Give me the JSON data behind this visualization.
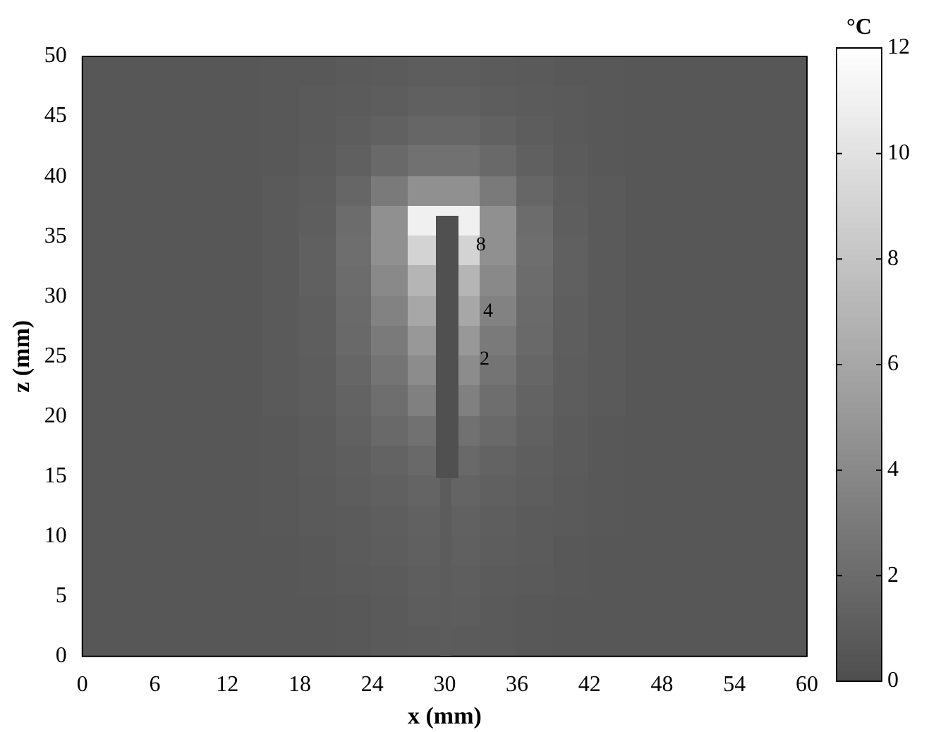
{
  "chart_data": {
    "type": "heatmap",
    "xlabel": "x (mm)",
    "ylabel": "z (mm)",
    "clabel": "°C",
    "x": [
      1.5,
      4.5,
      7.5,
      10.5,
      13.5,
      16.5,
      19.5,
      22.5,
      25.5,
      28.5,
      31.5,
      34.5,
      37.5,
      40.5,
      43.5,
      46.5,
      49.5,
      52.5,
      55.5,
      58.5
    ],
    "y": [
      48.75,
      46.25,
      43.75,
      41.25,
      38.75,
      36.25,
      33.75,
      31.25,
      28.75,
      26.25,
      23.75,
      21.25,
      18.75,
      16.25,
      13.75,
      11.25,
      8.75,
      6.25,
      3.75,
      1.25
    ],
    "cells": [
      [
        0.6,
        0.6,
        0.6,
        0.6,
        0.6,
        0.7,
        0.7,
        0.8,
        0.9,
        1.0,
        1.0,
        0.9,
        0.8,
        0.7,
        0.7,
        0.6,
        0.6,
        0.6,
        0.6,
        0.6
      ],
      [
        0.6,
        0.6,
        0.6,
        0.6,
        0.6,
        0.7,
        0.8,
        0.9,
        1.0,
        1.2,
        1.2,
        1.0,
        0.9,
        0.8,
        0.7,
        0.6,
        0.6,
        0.6,
        0.6,
        0.6
      ],
      [
        0.6,
        0.6,
        0.6,
        0.6,
        0.6,
        0.7,
        0.8,
        1.0,
        1.3,
        1.6,
        1.6,
        1.3,
        1.0,
        0.8,
        0.7,
        0.6,
        0.6,
        0.6,
        0.6,
        0.6
      ],
      [
        0.6,
        0.6,
        0.6,
        0.6,
        0.6,
        0.7,
        0.9,
        1.2,
        1.8,
        2.4,
        2.4,
        1.8,
        1.2,
        0.9,
        0.7,
        0.6,
        0.6,
        0.6,
        0.6,
        0.6
      ],
      [
        0.6,
        0.6,
        0.6,
        0.6,
        0.6,
        0.8,
        1.0,
        1.6,
        3.0,
        4.5,
        4.5,
        3.0,
        1.6,
        1.0,
        0.8,
        0.6,
        0.6,
        0.6,
        0.6,
        0.6
      ],
      [
        0.6,
        0.6,
        0.6,
        0.6,
        0.6,
        0.8,
        1.1,
        2.0,
        4.5,
        11,
        11,
        4.5,
        2.0,
        1.1,
        0.8,
        0.6,
        0.6,
        0.6,
        0.6,
        0.6
      ],
      [
        0.6,
        0.6,
        0.6,
        0.6,
        0.6,
        0.8,
        1.2,
        2.2,
        4.5,
        9,
        9,
        4.5,
        2.2,
        1.2,
        0.8,
        0.6,
        0.6,
        0.6,
        0.6,
        0.6
      ],
      [
        0.6,
        0.6,
        0.6,
        0.6,
        0.6,
        0.8,
        1.2,
        2.0,
        4.0,
        7,
        7,
        4.0,
        2.0,
        1.2,
        0.8,
        0.6,
        0.6,
        0.6,
        0.6,
        0.6
      ],
      [
        0.6,
        0.6,
        0.6,
        0.6,
        0.6,
        0.8,
        1.1,
        1.9,
        3.5,
        6,
        6,
        3.5,
        1.9,
        1.1,
        0.8,
        0.6,
        0.6,
        0.6,
        0.6,
        0.6
      ],
      [
        0.6,
        0.6,
        0.6,
        0.6,
        0.6,
        0.8,
        1.1,
        1.8,
        3.0,
        5,
        5,
        3.0,
        1.8,
        1.1,
        0.8,
        0.6,
        0.6,
        0.6,
        0.6,
        0.6
      ],
      [
        0.6,
        0.6,
        0.6,
        0.6,
        0.6,
        0.8,
        1.0,
        1.6,
        2.6,
        4.2,
        4.2,
        2.6,
        1.6,
        1.0,
        0.8,
        0.6,
        0.6,
        0.6,
        0.6,
        0.6
      ],
      [
        0.6,
        0.6,
        0.6,
        0.6,
        0.6,
        0.8,
        1.0,
        1.4,
        2.2,
        3.4,
        3.4,
        2.2,
        1.4,
        1.0,
        0.8,
        0.6,
        0.6,
        0.6,
        0.6,
        0.6
      ],
      [
        0.6,
        0.6,
        0.6,
        0.6,
        0.6,
        0.7,
        0.9,
        1.3,
        1.8,
        2.4,
        2.4,
        1.8,
        1.3,
        0.9,
        0.7,
        0.6,
        0.6,
        0.6,
        0.6,
        0.6
      ],
      [
        0.6,
        0.6,
        0.6,
        0.6,
        0.6,
        0.7,
        0.9,
        1.1,
        1.4,
        1.8,
        1.8,
        1.4,
        1.1,
        0.9,
        0.7,
        0.6,
        0.6,
        0.6,
        0.6,
        0.6
      ],
      [
        0.6,
        0.6,
        0.6,
        0.6,
        0.6,
        0.7,
        0.8,
        1.0,
        1.2,
        1.5,
        1.5,
        1.2,
        1.0,
        0.8,
        0.7,
        0.6,
        0.6,
        0.6,
        0.6,
        0.6
      ],
      [
        0.6,
        0.6,
        0.6,
        0.6,
        0.6,
        0.7,
        0.8,
        0.9,
        1.1,
        1.3,
        1.3,
        1.1,
        0.9,
        0.8,
        0.7,
        0.6,
        0.6,
        0.6,
        0.6,
        0.6
      ],
      [
        0.6,
        0.6,
        0.6,
        0.6,
        0.6,
        0.6,
        0.7,
        0.9,
        1.0,
        1.2,
        1.2,
        1.0,
        0.9,
        0.7,
        0.6,
        0.6,
        0.6,
        0.6,
        0.6,
        0.6
      ],
      [
        0.6,
        0.6,
        0.6,
        0.6,
        0.6,
        0.6,
        0.7,
        0.8,
        0.9,
        1.1,
        1.1,
        0.9,
        0.8,
        0.7,
        0.6,
        0.6,
        0.6,
        0.6,
        0.6,
        0.6
      ],
      [
        0.6,
        0.6,
        0.6,
        0.6,
        0.6,
        0.6,
        0.6,
        0.7,
        0.8,
        1.0,
        1.0,
        0.8,
        0.7,
        0.6,
        0.6,
        0.6,
        0.6,
        0.6,
        0.6,
        0.6
      ],
      [
        0.6,
        0.6,
        0.6,
        0.6,
        0.6,
        0.6,
        0.6,
        0.7,
        0.8,
        0.9,
        0.9,
        0.8,
        0.7,
        0.6,
        0.6,
        0.6,
        0.6,
        0.6,
        0.6,
        0.6
      ]
    ],
    "xlim": [
      0,
      60
    ],
    "xticks": [
      0,
      6,
      12,
      18,
      24,
      30,
      36,
      42,
      48,
      54,
      60
    ],
    "ylim": [
      0,
      50
    ],
    "yticks": [
      0,
      5,
      10,
      15,
      20,
      25,
      30,
      35,
      40,
      45,
      50
    ],
    "clim": [
      0,
      12
    ],
    "cticks": [
      0,
      2,
      4,
      6,
      8,
      10,
      12
    ],
    "annotations": [
      "8",
      "4",
      "2"
    ]
  }
}
